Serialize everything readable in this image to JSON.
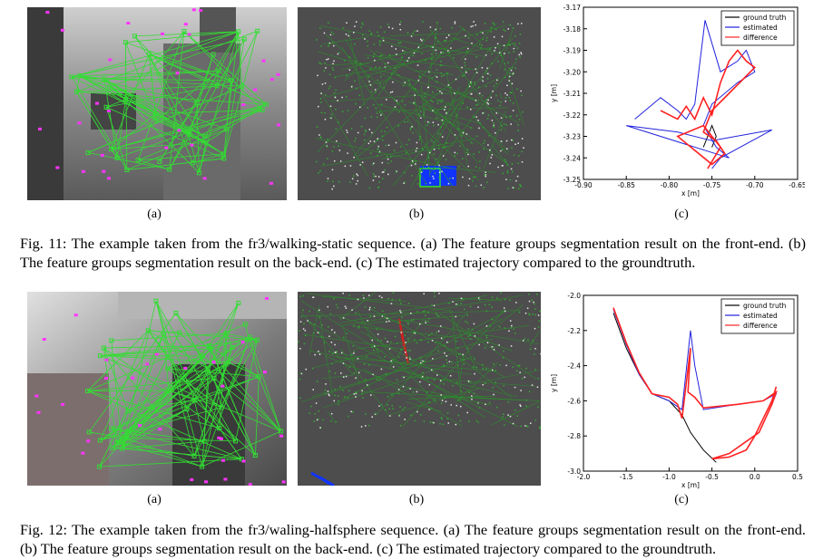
{
  "figures": [
    {
      "sublabels": [
        "(a)",
        "(b)",
        "(c)"
      ],
      "caption": "Fig. 11: The example taken from the fr3/walking-static sequence. (a) The feature groups segmentation result on the front-end. (b) The feature groups segmentation result on the back-end. (c) The estimated trajectory compared to the groundtruth."
    },
    {
      "sublabels": [
        "(a)",
        "(b)",
        "(c)"
      ],
      "caption": "Fig. 12: The example taken from the fr3/waling-halfsphere sequence. (a) The feature groups segmentation result on the front-end. (b) The feature groups segmentation result on the back-end. (c) The estimated trajectory compared to the groundtruth."
    }
  ],
  "colors": {
    "features": "#33dd33",
    "points": "#ff33ff",
    "backend_bg": "#4d4d4d",
    "blue_group": "#1133ff",
    "red_group": "#cc2222"
  },
  "chart_data": [
    {
      "type": "line",
      "xlabel": "x [m]",
      "ylabel": "y [m]",
      "xlim": [
        -0.9,
        -0.65
      ],
      "ylim": [
        -3.25,
        -3.17
      ],
      "xticks": [
        "-0.90",
        "-0.85",
        "-0.80",
        "-0.75",
        "-0.70",
        "-0.65"
      ],
      "yticks": [
        "-3.17",
        "-3.18",
        "-3.19",
        "-3.20",
        "-3.21",
        "-3.22",
        "-3.23",
        "-3.24",
        "-3.25"
      ],
      "legend": "top-right",
      "series": [
        {
          "name": "ground truth",
          "color": "#000000",
          "x": [
            -0.76,
            -0.755,
            -0.75,
            -0.745,
            -0.75
          ],
          "y": [
            -3.235,
            -3.23,
            -3.225,
            -3.23,
            -3.235
          ]
        },
        {
          "name": "estimated",
          "color": "#2222dd",
          "x": [
            -0.84,
            -0.81,
            -0.79,
            -0.78,
            -0.77,
            -0.758,
            -0.74,
            -0.72,
            -0.71,
            -0.7,
            -0.72,
            -0.75,
            -0.76,
            -0.745,
            -0.73,
            -0.85,
            -0.79,
            -0.75,
            -0.68,
            -0.74,
            -0.75
          ],
          "y": [
            -3.222,
            -3.212,
            -3.218,
            -3.222,
            -3.215,
            -3.176,
            -3.2,
            -3.195,
            -3.19,
            -3.2,
            -3.205,
            -3.215,
            -3.225,
            -3.235,
            -3.24,
            -3.225,
            -3.228,
            -3.232,
            -3.227,
            -3.24,
            -3.245
          ]
        },
        {
          "name": "difference",
          "color": "#ff2222",
          "x": [
            -0.81,
            -0.79,
            -0.78,
            -0.77,
            -0.76,
            -0.75,
            -0.74,
            -0.73,
            -0.72,
            -0.71,
            -0.7,
            -0.73,
            -0.75,
            -0.76,
            -0.745,
            -0.735,
            -0.75,
            -0.79,
            -0.76,
            -0.74,
            -0.755
          ],
          "y": [
            -3.218,
            -3.222,
            -3.216,
            -3.222,
            -3.212,
            -3.22,
            -3.205,
            -3.195,
            -3.19,
            -3.195,
            -3.198,
            -3.21,
            -3.218,
            -3.228,
            -3.232,
            -3.238,
            -3.243,
            -3.23,
            -3.225,
            -3.235,
            -3.245
          ]
        }
      ]
    },
    {
      "type": "line",
      "xlabel": "x [m]",
      "ylabel": "y [m]",
      "xlim": [
        -2.0,
        0.5
      ],
      "ylim": [
        -3.0,
        -2.0
      ],
      "xticks": [
        "-2.0",
        "-1.5",
        "-1.0",
        "-0.5",
        "0.0",
        "0.5"
      ],
      "yticks": [
        "-2.0",
        "-2.2",
        "-2.4",
        "-2.6",
        "-2.8",
        "-3.0"
      ],
      "legend": "top-right",
      "series": [
        {
          "name": "ground truth",
          "color": "#000000",
          "x": [
            -1.65,
            -1.5,
            -1.35,
            -1.2,
            -1.0,
            -0.85,
            -0.75,
            -0.6,
            -0.45
          ],
          "y": [
            -2.1,
            -2.3,
            -2.45,
            -2.56,
            -2.6,
            -2.68,
            -2.78,
            -2.88,
            -2.95
          ]
        },
        {
          "name": "estimated",
          "color": "#2222dd",
          "x": [
            -1.65,
            -1.5,
            -1.35,
            -1.2,
            -1.0,
            -0.85,
            -0.75,
            -0.7,
            -0.6,
            -0.2,
            0.1,
            0.25,
            0.2,
            0.05,
            -0.3,
            -0.5,
            -0.3,
            -0.1,
            0.0,
            0.1,
            0.2,
            0.25
          ],
          "y": [
            -2.08,
            -2.28,
            -2.45,
            -2.56,
            -2.6,
            -2.65,
            -2.2,
            -2.4,
            -2.65,
            -2.62,
            -2.6,
            -2.56,
            -2.62,
            -2.78,
            -2.9,
            -2.93,
            -2.92,
            -2.88,
            -2.8,
            -2.7,
            -2.6,
            -2.55
          ]
        },
        {
          "name": "difference",
          "color": "#ff2222",
          "x": [
            -1.65,
            -1.5,
            -1.35,
            -1.2,
            -1.0,
            -0.9,
            -0.85,
            -0.75,
            -0.78,
            -0.7,
            -0.6,
            -0.2,
            0.1,
            0.25,
            0.2,
            0.05,
            -0.3,
            -0.5,
            -0.3,
            -0.1,
            0.0,
            0.1,
            0.2,
            0.25
          ],
          "y": [
            -2.07,
            -2.27,
            -2.44,
            -2.56,
            -2.58,
            -2.62,
            -2.7,
            -2.3,
            -2.55,
            -2.58,
            -2.64,
            -2.62,
            -2.6,
            -2.55,
            -2.62,
            -2.78,
            -2.9,
            -2.93,
            -2.92,
            -2.88,
            -2.8,
            -2.7,
            -2.6,
            -2.52
          ]
        }
      ]
    }
  ]
}
